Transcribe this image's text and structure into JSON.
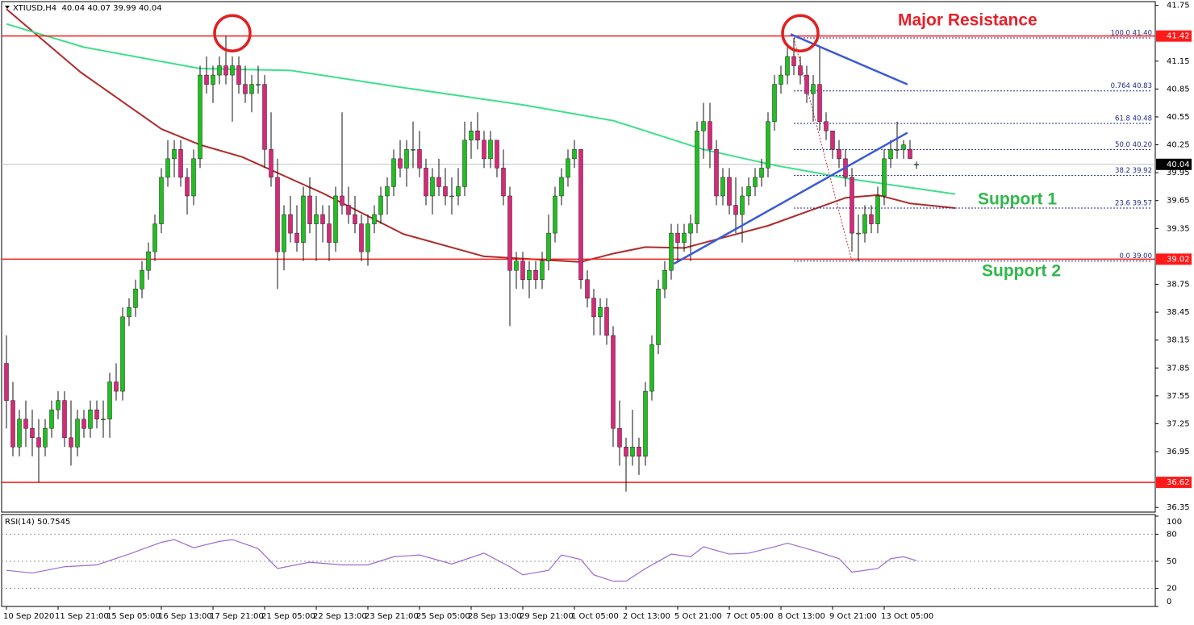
{
  "chart_data": {
    "type": "candlestick",
    "title": "XTIUSD,H4  40.04 40.07 39.99 40.04",
    "categories": [
      "10 Sep 2020",
      null,
      null,
      null,
      null,
      null,
      null,
      null,
      "11 Sep 21:00",
      null,
      null,
      null,
      null,
      null,
      null,
      null,
      "15 Sep 05:00",
      null,
      null,
      null,
      null,
      null,
      null,
      null,
      "16 Sep 13:00",
      null,
      null,
      null,
      null,
      null,
      null,
      null,
      "17 Sep 21:00",
      null,
      null,
      null,
      null,
      null,
      null,
      null,
      "21 Sep 05:00",
      null,
      null,
      null,
      null,
      null,
      null,
      null,
      "22 Sep 13:00",
      null,
      null,
      null,
      null,
      null,
      null,
      null,
      "23 Sep 21:00",
      null,
      null,
      null,
      null,
      null,
      null,
      null,
      "25 Sep 05:00",
      null,
      null,
      null,
      null,
      null,
      null,
      null,
      "28 Sep 13:00",
      null,
      null,
      null,
      null,
      null,
      null,
      null,
      "29 Sep 21:00",
      null,
      null,
      null,
      null,
      null,
      null,
      null,
      "1 Oct 05:00",
      null,
      null,
      null,
      null,
      null,
      null,
      null,
      "2 Oct 13:00",
      null,
      null,
      null,
      null,
      null,
      null,
      null,
      "5 Oct 21:00",
      null,
      null,
      null,
      null,
      null,
      null,
      null,
      "7 Oct 05:00",
      null,
      null,
      null,
      null,
      null,
      null,
      null,
      "8 Oct 13:00",
      null,
      null,
      null,
      null,
      null,
      null,
      null,
      "9 Oct 21:00",
      null,
      null,
      null,
      null,
      null,
      null,
      null,
      "13 Oct 05:00",
      null,
      null,
      null,
      null,
      null
    ],
    "candles": [
      [
        37.9,
        38.2,
        37.2,
        37.5
      ],
      [
        37.5,
        37.7,
        36.9,
        37.0
      ],
      [
        37.0,
        37.4,
        36.9,
        37.3
      ],
      [
        37.3,
        37.5,
        37.0,
        37.2
      ],
      [
        37.2,
        37.4,
        36.9,
        37.1
      ],
      [
        37.1,
        37.3,
        36.62,
        37.0
      ],
      [
        37.0,
        37.3,
        36.9,
        37.2
      ],
      [
        37.2,
        37.5,
        37.1,
        37.4
      ],
      [
        37.4,
        37.6,
        37.3,
        37.5
      ],
      [
        37.5,
        37.6,
        37.0,
        37.1
      ],
      [
        37.1,
        37.5,
        36.8,
        37.0
      ],
      [
        37.0,
        37.4,
        36.9,
        37.3
      ],
      [
        37.3,
        37.4,
        37.1,
        37.2
      ],
      [
        37.2,
        37.5,
        37.1,
        37.4
      ],
      [
        37.4,
        37.5,
        37.2,
        37.3
      ],
      [
        37.3,
        37.5,
        37.1,
        37.3
      ],
      [
        37.3,
        37.8,
        37.1,
        37.7
      ],
      [
        37.7,
        37.9,
        37.5,
        37.6
      ],
      [
        37.6,
        38.5,
        37.5,
        38.4
      ],
      [
        38.4,
        38.6,
        38.3,
        38.5
      ],
      [
        38.5,
        38.8,
        38.4,
        38.7
      ],
      [
        38.7,
        39.0,
        38.6,
        38.9
      ],
      [
        38.9,
        39.2,
        38.8,
        39.1
      ],
      [
        39.1,
        39.5,
        39.0,
        39.4
      ],
      [
        39.4,
        40.0,
        39.3,
        39.9
      ],
      [
        39.9,
        40.3,
        39.8,
        40.1
      ],
      [
        40.1,
        40.3,
        39.9,
        40.2
      ],
      [
        40.2,
        40.3,
        39.8,
        39.9
      ],
      [
        39.9,
        40.0,
        39.5,
        39.7
      ],
      [
        39.7,
        40.2,
        39.6,
        40.1
      ],
      [
        40.1,
        41.1,
        40.0,
        41.0
      ],
      [
        41.0,
        41.2,
        40.8,
        40.9
      ],
      [
        40.9,
        41.1,
        40.7,
        41.0
      ],
      [
        41.0,
        41.2,
        40.9,
        41.1
      ],
      [
        41.1,
        41.42,
        40.9,
        41.0
      ],
      [
        41.0,
        41.2,
        40.5,
        41.1
      ],
      [
        41.1,
        41.2,
        40.8,
        40.9
      ],
      [
        40.9,
        41.1,
        40.7,
        40.8
      ],
      [
        40.8,
        41.0,
        40.6,
        40.9
      ],
      [
        40.9,
        41.1,
        40.8,
        40.9
      ],
      [
        40.9,
        41.0,
        40.0,
        40.2
      ],
      [
        40.2,
        40.6,
        39.8,
        39.9
      ],
      [
        39.9,
        40.1,
        38.7,
        39.1
      ],
      [
        39.1,
        39.6,
        38.9,
        39.5
      ],
      [
        39.5,
        39.7,
        39.2,
        39.3
      ],
      [
        39.3,
        39.6,
        39.1,
        39.2
      ],
      [
        39.2,
        39.8,
        39.0,
        39.7
      ],
      [
        39.7,
        39.9,
        39.3,
        39.4
      ],
      [
        39.4,
        39.7,
        39.0,
        39.5
      ],
      [
        39.5,
        39.6,
        39.2,
        39.4
      ],
      [
        39.4,
        39.6,
        39.0,
        39.2
      ],
      [
        39.2,
        39.8,
        39.1,
        39.7
      ],
      [
        39.7,
        40.6,
        39.5,
        39.6
      ],
      [
        39.6,
        39.8,
        39.4,
        39.5
      ],
      [
        39.5,
        39.7,
        39.3,
        39.4
      ],
      [
        39.4,
        39.5,
        39.0,
        39.1
      ],
      [
        39.1,
        39.5,
        38.95,
        39.4
      ],
      [
        39.4,
        39.6,
        39.3,
        39.5
      ],
      [
        39.5,
        39.8,
        39.4,
        39.7
      ],
      [
        39.7,
        39.9,
        39.5,
        39.8
      ],
      [
        39.8,
        40.2,
        39.7,
        40.1
      ],
      [
        40.1,
        40.3,
        39.9,
        40.0
      ],
      [
        40.0,
        40.3,
        39.8,
        40.2
      ],
      [
        40.2,
        40.5,
        40.0,
        40.2
      ],
      [
        40.2,
        40.4,
        39.9,
        40.0
      ],
      [
        40.0,
        40.1,
        39.6,
        39.7
      ],
      [
        39.7,
        40.0,
        39.5,
        39.9
      ],
      [
        39.9,
        40.1,
        39.7,
        39.8
      ],
      [
        39.8,
        40.0,
        39.6,
        39.7
      ],
      [
        39.7,
        39.9,
        39.5,
        39.7
      ],
      [
        39.7,
        40.0,
        39.6,
        39.8
      ],
      [
        39.8,
        40.5,
        39.7,
        40.3
      ],
      [
        40.3,
        40.5,
        40.1,
        40.4
      ],
      [
        40.4,
        40.6,
        40.2,
        40.3
      ],
      [
        40.3,
        40.4,
        40.0,
        40.1
      ],
      [
        40.1,
        40.4,
        40.0,
        40.3
      ],
      [
        40.3,
        40.3,
        39.9,
        40.0
      ],
      [
        40.0,
        40.2,
        39.6,
        39.7
      ],
      [
        39.7,
        39.8,
        38.3,
        38.9
      ],
      [
        38.9,
        39.1,
        38.7,
        39.0
      ],
      [
        39.0,
        39.1,
        38.7,
        38.8
      ],
      [
        38.8,
        39.0,
        38.6,
        38.9
      ],
      [
        38.9,
        39.0,
        38.7,
        38.8
      ],
      [
        38.8,
        39.1,
        38.7,
        39.0
      ],
      [
        39.0,
        39.5,
        38.9,
        39.3
      ],
      [
        39.3,
        39.8,
        39.2,
        39.7
      ],
      [
        39.7,
        40.0,
        39.6,
        39.9
      ],
      [
        39.9,
        40.2,
        39.8,
        40.1
      ],
      [
        40.1,
        40.3,
        40.0,
        40.2
      ],
      [
        40.2,
        40.2,
        38.7,
        38.8
      ],
      [
        38.8,
        38.9,
        38.5,
        38.6
      ],
      [
        38.6,
        38.7,
        38.2,
        38.4
      ],
      [
        38.4,
        38.6,
        38.2,
        38.5
      ],
      [
        38.5,
        38.6,
        38.1,
        38.2
      ],
      [
        38.2,
        38.3,
        37.0,
        37.2
      ],
      [
        37.2,
        37.5,
        36.8,
        37.0
      ],
      [
        37.0,
        37.1,
        36.52,
        36.9
      ],
      [
        36.9,
        37.4,
        36.8,
        37.0
      ],
      [
        37.0,
        37.1,
        36.7,
        36.9
      ],
      [
        36.9,
        37.7,
        36.8,
        37.6
      ],
      [
        37.6,
        38.2,
        37.5,
        38.1
      ],
      [
        38.1,
        38.8,
        38.0,
        38.7
      ],
      [
        38.7,
        39.0,
        38.6,
        38.9
      ],
      [
        38.9,
        39.4,
        38.8,
        39.3
      ],
      [
        39.3,
        39.4,
        39.0,
        39.2
      ],
      [
        39.2,
        39.4,
        39.1,
        39.3
      ],
      [
        39.3,
        39.5,
        39.0,
        39.4
      ],
      [
        39.4,
        40.5,
        39.3,
        40.4
      ],
      [
        40.4,
        40.7,
        40.1,
        40.5
      ],
      [
        40.5,
        40.7,
        40.0,
        40.2
      ],
      [
        40.2,
        40.3,
        39.6,
        39.7
      ],
      [
        39.7,
        40.0,
        39.6,
        39.9
      ],
      [
        39.9,
        40.0,
        39.5,
        39.6
      ],
      [
        39.6,
        39.9,
        39.3,
        39.5
      ],
      [
        39.5,
        39.8,
        39.2,
        39.7
      ],
      [
        39.7,
        39.9,
        39.6,
        39.8
      ],
      [
        39.8,
        40.0,
        39.7,
        39.9
      ],
      [
        39.9,
        40.1,
        39.8,
        40.0
      ],
      [
        40.0,
        40.6,
        39.9,
        40.5
      ],
      [
        40.5,
        41.0,
        40.4,
        40.9
      ],
      [
        40.9,
        41.1,
        40.8,
        41.0
      ],
      [
        41.0,
        41.3,
        40.9,
        41.2
      ],
      [
        41.2,
        41.4,
        41.0,
        41.1
      ],
      [
        41.1,
        41.2,
        40.9,
        41.0
      ],
      [
        41.0,
        41.1,
        40.7,
        40.8
      ],
      [
        40.8,
        41.0,
        40.5,
        40.9
      ],
      [
        40.9,
        41.3,
        40.4,
        40.5
      ],
      [
        40.5,
        40.6,
        40.3,
        40.4
      ],
      [
        40.4,
        40.4,
        40.1,
        40.2
      ],
      [
        40.2,
        40.3,
        40.0,
        40.1
      ],
      [
        40.1,
        40.2,
        39.8,
        39.9
      ],
      [
        39.9,
        40.0,
        39.1,
        39.3
      ],
      [
        39.3,
        39.5,
        39.0,
        39.3
      ],
      [
        39.3,
        39.6,
        39.2,
        39.5
      ],
      [
        39.5,
        39.6,
        39.3,
        39.4
      ],
      [
        39.4,
        39.8,
        39.3,
        39.7
      ],
      [
        39.7,
        40.2,
        39.6,
        40.1
      ],
      [
        40.1,
        40.3,
        40.0,
        40.2
      ],
      [
        40.2,
        40.5,
        40.1,
        40.2
      ],
      [
        40.2,
        40.3,
        40.1,
        40.25
      ],
      [
        40.2,
        40.3,
        40.1,
        40.1
      ],
      [
        40.04,
        40.07,
        39.99,
        40.04
      ]
    ],
    "up_color": "#1fc01f",
    "down_color": "#d8287a",
    "xlim": [
      -0.75,
      178
    ],
    "ylim": [
      36.3,
      41.79
    ],
    "yticks": [
      36.35,
      36.95,
      37.25,
      37.55,
      37.85,
      38.15,
      38.45,
      38.75,
      39.35,
      39.65,
      39.95,
      40.25,
      40.55,
      40.85,
      41.15,
      41.75
    ],
    "grid": false,
    "series": [
      {
        "color": "#b02a2a",
        "x": [
          0,
          11.5,
          24,
          30,
          36.5,
          49,
          61.5,
          74,
          89,
          94,
          99,
          105,
          118,
          130,
          135,
          140,
          147
        ],
        "values": [
          41.71,
          41.03,
          40.42,
          40.25,
          40.12,
          39.73,
          39.29,
          39.05,
          38.99,
          39.08,
          39.15,
          39.14,
          39.38,
          39.68,
          39.71,
          39.62,
          39.57
        ]
      },
      {
        "color": "#3ee08a",
        "x": [
          0,
          12,
          30,
          44,
          61,
          80,
          94,
          108,
          119,
          131,
          147
        ],
        "values": [
          41.55,
          41.3,
          41.07,
          41.05,
          40.87,
          40.68,
          40.51,
          40.2,
          40.03,
          39.88,
          39.72
        ]
      }
    ],
    "hlines": {
      "color": "#ff1a1a",
      "values": [
        41.42,
        39.02,
        36.62
      ]
    },
    "last_price": 40.04,
    "trendlines": {
      "color": "#3a5ad8",
      "lines": [
        {
          "x": [
            121.5,
            139.6
          ],
          "y": [
            41.44,
            40.9
          ]
        },
        {
          "x": [
            103.4,
            139.6
          ],
          "y": [
            38.97,
            40.38
          ]
        }
      ]
    },
    "circles": {
      "color": "#e02020",
      "points": [
        {
          "x": 35,
          "y": 41.45
        },
        {
          "x": 123,
          "y": 41.45
        }
      ]
    },
    "fib": {
      "color": "#1f2a8a",
      "diagonal_color": "#d03030",
      "x": [
        122,
        131
      ],
      "levels": [
        {
          "value": 41.4,
          "label": "100.0 41.40"
        },
        {
          "value": 40.83,
          "label": "0.764 40.83"
        },
        {
          "value": 40.48,
          "label": "61.8 40.48"
        },
        {
          "value": 40.2,
          "label": "50.0 40.20"
        },
        {
          "value": 39.92,
          "label": "38.2 39.92"
        },
        {
          "value": 39.57,
          "label": "23.6 39.57"
        },
        {
          "value": 39.0,
          "label": "0.0 39.00"
        }
      ]
    },
    "annotations": [
      "Major Resistance",
      "Support 1",
      "Support 2"
    ],
    "rsi": {
      "type": "line",
      "title": "RSI(14) 50.7545",
      "color": "#9a6ad0",
      "x": [
        0,
        4,
        9,
        14,
        19,
        24,
        26,
        29,
        33,
        35,
        39,
        42,
        47,
        52,
        56,
        60,
        64,
        69,
        74,
        78,
        80,
        84,
        86,
        89,
        91,
        94,
        96,
        99,
        103,
        106,
        108,
        112,
        115,
        119,
        121,
        125,
        129,
        131,
        135,
        137,
        139,
        141
      ],
      "values": [
        40,
        37,
        44,
        46,
        58,
        71,
        74,
        65,
        72,
        74,
        64,
        42,
        49,
        46,
        46,
        55,
        57,
        47,
        59,
        44,
        35,
        40,
        57,
        52,
        35,
        28,
        28,
        42,
        58,
        55,
        66,
        58,
        59,
        66,
        70,
        62,
        53,
        38,
        42,
        53,
        55,
        50.7545
      ],
      "ylim": [
        0,
        100
      ],
      "yticks": [
        0,
        20,
        50,
        80,
        100
      ]
    }
  }
}
